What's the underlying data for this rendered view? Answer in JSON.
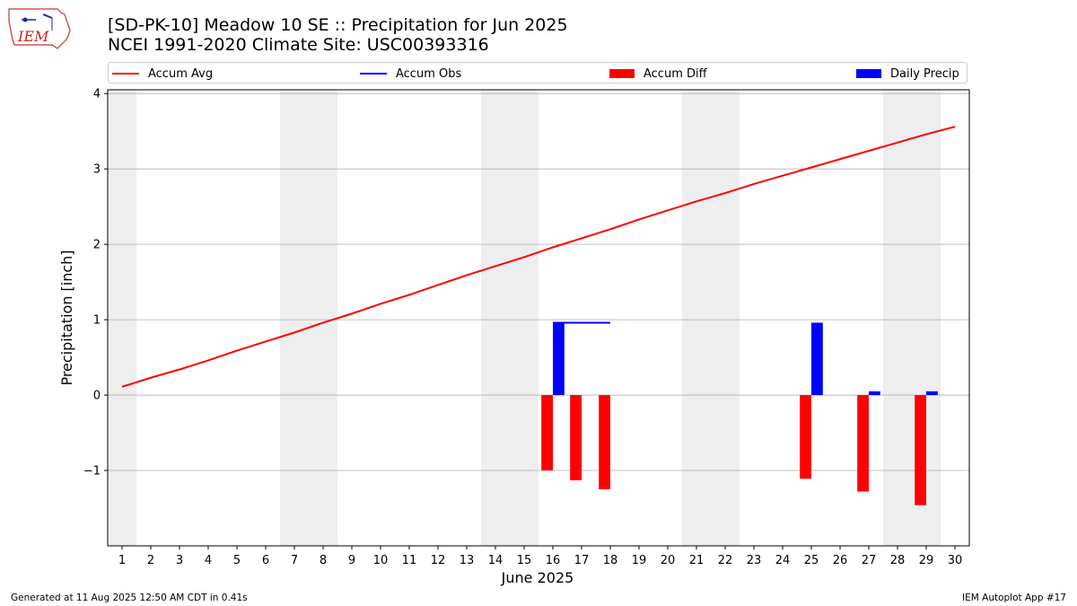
{
  "header": {
    "title_line1": "[SD-PK-10] Meadow 10 SE :: Precipitation for Jun 2025",
    "title_line2": "NCEI 1991-2020 Climate Site: USC00393316",
    "logo_text": "IEM"
  },
  "legend": {
    "items": [
      {
        "label": "Accum Avg",
        "color": "#ff0000",
        "kind": "line"
      },
      {
        "label": "Accum Obs",
        "color": "#0000ff",
        "kind": "line"
      },
      {
        "label": "Accum Diff",
        "color": "#ff0000",
        "kind": "box"
      },
      {
        "label": "Daily Precip",
        "color": "#0000ff",
        "kind": "box"
      }
    ]
  },
  "footer": {
    "left": "Generated at 11 Aug 2025 12:50 AM CDT in 0.41s",
    "right": "IEM Autoplot App #17"
  },
  "chart_data": {
    "type": "bar",
    "xlabel": "June 2025",
    "ylabel": "Precipitation [inch]",
    "xlim": [
      0.5,
      30.5
    ],
    "ylim": [
      -2.0,
      4.05
    ],
    "x_ticks": [
      1,
      2,
      3,
      4,
      5,
      6,
      7,
      8,
      9,
      10,
      11,
      12,
      13,
      14,
      15,
      16,
      17,
      18,
      19,
      20,
      21,
      22,
      23,
      24,
      25,
      26,
      27,
      28,
      29,
      30
    ],
    "y_ticks": [
      {
        "value": -1,
        "label": "−1"
      },
      {
        "value": 0,
        "label": "0"
      },
      {
        "value": 1,
        "label": "1"
      },
      {
        "value": 2,
        "label": "2"
      },
      {
        "value": 3,
        "label": "3"
      },
      {
        "value": 4,
        "label": "4"
      }
    ],
    "grid": "horizontal",
    "weekend_shading_days": [
      1,
      7,
      8,
      14,
      15,
      21,
      22,
      28,
      29
    ],
    "colors": {
      "avg": "#ff0000",
      "obs": "#0000ff",
      "diff": "#ff0000",
      "daily": "#0000ff",
      "shade": "#eeeeee",
      "grid": "#b0b0b0"
    },
    "series": [
      {
        "name": "Accum Avg",
        "kind": "line",
        "x": [
          1,
          2,
          3,
          4,
          5,
          6,
          7,
          8,
          9,
          10,
          11,
          12,
          13,
          14,
          15,
          16,
          17,
          18,
          19,
          20,
          21,
          22,
          23,
          24,
          25,
          26,
          27,
          28,
          29,
          30
        ],
        "values": [
          0.11,
          0.23,
          0.34,
          0.46,
          0.59,
          0.71,
          0.83,
          0.96,
          1.08,
          1.21,
          1.33,
          1.46,
          1.59,
          1.71,
          1.83,
          1.96,
          2.08,
          2.2,
          2.33,
          2.45,
          2.57,
          2.68,
          2.8,
          2.91,
          3.02,
          3.13,
          3.24,
          3.35,
          3.46,
          3.56
        ]
      },
      {
        "name": "Accum Obs",
        "kind": "line",
        "x": [
          16,
          17,
          18
        ],
        "values": [
          0.96,
          0.96,
          0.96
        ]
      },
      {
        "name": "Accum Diff",
        "kind": "bar",
        "x": [
          16,
          17,
          18,
          25,
          27,
          29
        ],
        "values": [
          -1.0,
          -1.13,
          -1.25,
          -1.11,
          -1.28,
          -1.46
        ]
      },
      {
        "name": "Daily Precip",
        "kind": "bar",
        "x": [
          16,
          25,
          27,
          29
        ],
        "values": [
          0.96,
          0.96,
          0.05,
          0.05
        ]
      }
    ]
  }
}
